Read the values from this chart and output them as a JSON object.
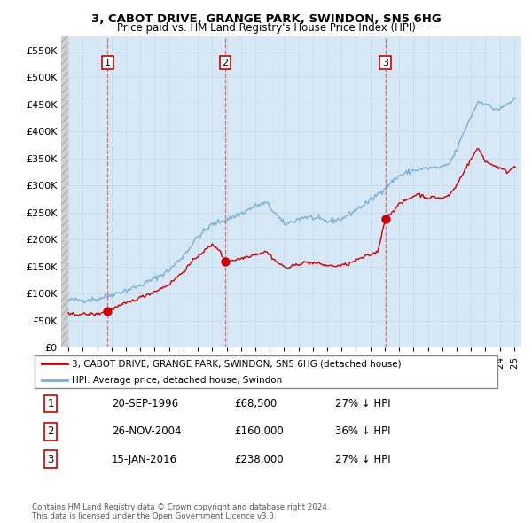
{
  "title1": "3, CABOT DRIVE, GRANGE PARK, SWINDON, SN5 6HG",
  "title2": "Price paid vs. HM Land Registry's House Price Index (HPI)",
  "legend_label_red": "3, CABOT DRIVE, GRANGE PARK, SWINDON, SN5 6HG (detached house)",
  "legend_label_blue": "HPI: Average price, detached house, Swindon",
  "sale1_date": "20-SEP-1996",
  "sale1_price": 68500,
  "sale1_x": 1996.72,
  "sale2_date": "26-NOV-2004",
  "sale2_price": 160000,
  "sale2_x": 2004.9,
  "sale3_date": "15-JAN-2016",
  "sale3_price": 238000,
  "sale3_x": 2016.04,
  "sale1_pct": "27% ↓ HPI",
  "sale2_pct": "36% ↓ HPI",
  "sale3_pct": "27% ↓ HPI",
  "footnote": "Contains HM Land Registry data © Crown copyright and database right 2024.\nThis data is licensed under the Open Government Licence v3.0.",
  "red_color": "#cc0000",
  "blue_color": "#7ab0d4",
  "blue_fill": "#d6e8f5",
  "dashed_color": "#e06060",
  "grid_color": "#c8dcea",
  "ylim_max": 575000,
  "ylim_min": 0,
  "xlim_min": 1993.5,
  "xlim_max": 2025.5
}
